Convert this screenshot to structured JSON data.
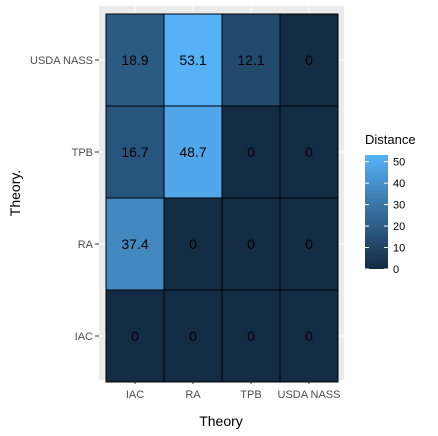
{
  "chart_data": {
    "type": "heatmap",
    "xlabel": "Theory",
    "ylabel": "Theory.",
    "x_categories": [
      "IAC",
      "RA",
      "TPB",
      "USDA NASS"
    ],
    "y_categories": [
      "IAC",
      "RA",
      "TPB",
      "USDA NASS"
    ],
    "cells": [
      {
        "x": "IAC",
        "y": "IAC",
        "value": 0,
        "label": "0"
      },
      {
        "x": "RA",
        "y": "IAC",
        "value": 0,
        "label": "0"
      },
      {
        "x": "TPB",
        "y": "IAC",
        "value": 0,
        "label": "0"
      },
      {
        "x": "USDA NASS",
        "y": "IAC",
        "value": 0,
        "label": "0"
      },
      {
        "x": "IAC",
        "y": "RA",
        "value": 37.4,
        "label": "37.4"
      },
      {
        "x": "RA",
        "y": "RA",
        "value": 0,
        "label": "0"
      },
      {
        "x": "TPB",
        "y": "RA",
        "value": 0,
        "label": "0"
      },
      {
        "x": "USDA NASS",
        "y": "RA",
        "value": 0,
        "label": "0"
      },
      {
        "x": "IAC",
        "y": "TPB",
        "value": 16.7,
        "label": "16.7"
      },
      {
        "x": "RA",
        "y": "TPB",
        "value": 48.7,
        "label": "48.7"
      },
      {
        "x": "TPB",
        "y": "TPB",
        "value": 0,
        "label": "0"
      },
      {
        "x": "USDA NASS",
        "y": "TPB",
        "value": 0,
        "label": "0"
      },
      {
        "x": "IAC",
        "y": "USDA NASS",
        "value": 18.9,
        "label": "18.9"
      },
      {
        "x": "RA",
        "y": "USDA NASS",
        "value": 53.1,
        "label": "53.1"
      },
      {
        "x": "TPB",
        "y": "USDA NASS",
        "value": 12.1,
        "label": "12.1"
      },
      {
        "x": "USDA NASS",
        "y": "USDA NASS",
        "value": 0,
        "label": "0"
      }
    ],
    "legend": {
      "title": "Distance",
      "placement": "right",
      "ticks": [
        0,
        10,
        20,
        30,
        40,
        50
      ],
      "range": [
        0,
        53.1
      ]
    },
    "colors": {
      "low": "#132b43",
      "high": "#56b1f7",
      "panel_background": "#ebebeb",
      "cell_border": "#000000"
    },
    "grid": true
  }
}
